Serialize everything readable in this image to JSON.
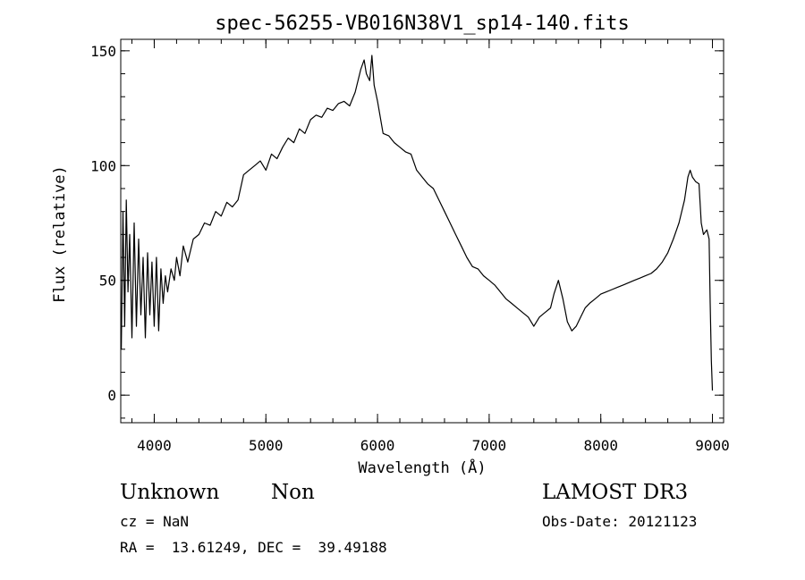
{
  "chart_data": {
    "type": "line",
    "title": "spec-56255-VB016N38V1_sp14-140.fits",
    "xlabel": "Wavelength (Å)",
    "ylabel": "Flux (relative)",
    "xlim": [
      3700,
      9100
    ],
    "ylim": [
      -12,
      155
    ],
    "xticks": [
      4000,
      5000,
      6000,
      7000,
      8000,
      9000
    ],
    "yticks": [
      0,
      50,
      100,
      150
    ],
    "x_minor_step": 200,
    "y_minor_step": 10,
    "grid": false,
    "series": [
      {
        "color": "#000000",
        "points": [
          [
            3705,
            20
          ],
          [
            3720,
            80
          ],
          [
            3735,
            30
          ],
          [
            3750,
            85
          ],
          [
            3765,
            45
          ],
          [
            3780,
            70
          ],
          [
            3800,
            25
          ],
          [
            3820,
            75
          ],
          [
            3840,
            30
          ],
          [
            3860,
            68
          ],
          [
            3880,
            35
          ],
          [
            3900,
            60
          ],
          [
            3920,
            25
          ],
          [
            3940,
            62
          ],
          [
            3960,
            35
          ],
          [
            3980,
            58
          ],
          [
            4000,
            30
          ],
          [
            4020,
            60
          ],
          [
            4040,
            28
          ],
          [
            4060,
            55
          ],
          [
            4080,
            40
          ],
          [
            4100,
            52
          ],
          [
            4120,
            45
          ],
          [
            4150,
            55
          ],
          [
            4180,
            50
          ],
          [
            4200,
            60
          ],
          [
            4230,
            52
          ],
          [
            4260,
            65
          ],
          [
            4300,
            58
          ],
          [
            4350,
            68
          ],
          [
            4400,
            70
          ],
          [
            4450,
            75
          ],
          [
            4500,
            74
          ],
          [
            4550,
            80
          ],
          [
            4600,
            78
          ],
          [
            4650,
            84
          ],
          [
            4700,
            82
          ],
          [
            4750,
            85
          ],
          [
            4800,
            96
          ],
          [
            4850,
            98
          ],
          [
            4900,
            100
          ],
          [
            4950,
            102
          ],
          [
            5000,
            98
          ],
          [
            5050,
            105
          ],
          [
            5100,
            103
          ],
          [
            5150,
            108
          ],
          [
            5200,
            112
          ],
          [
            5250,
            110
          ],
          [
            5300,
            116
          ],
          [
            5350,
            114
          ],
          [
            5400,
            120
          ],
          [
            5450,
            122
          ],
          [
            5500,
            121
          ],
          [
            5550,
            125
          ],
          [
            5600,
            124
          ],
          [
            5650,
            127
          ],
          [
            5700,
            128
          ],
          [
            5750,
            126
          ],
          [
            5800,
            132
          ],
          [
            5850,
            142
          ],
          [
            5880,
            146
          ],
          [
            5900,
            140
          ],
          [
            5930,
            137
          ],
          [
            5950,
            148
          ],
          [
            5970,
            135
          ],
          [
            6000,
            128
          ],
          [
            6050,
            114
          ],
          [
            6100,
            113
          ],
          [
            6150,
            110
          ],
          [
            6200,
            108
          ],
          [
            6250,
            106
          ],
          [
            6300,
            105
          ],
          [
            6350,
            98
          ],
          [
            6400,
            95
          ],
          [
            6450,
            92
          ],
          [
            6500,
            90
          ],
          [
            6550,
            85
          ],
          [
            6600,
            80
          ],
          [
            6650,
            75
          ],
          [
            6700,
            70
          ],
          [
            6750,
            65
          ],
          [
            6800,
            60
          ],
          [
            6850,
            56
          ],
          [
            6900,
            55
          ],
          [
            6950,
            52
          ],
          [
            7000,
            50
          ],
          [
            7050,
            48
          ],
          [
            7100,
            45
          ],
          [
            7150,
            42
          ],
          [
            7200,
            40
          ],
          [
            7250,
            38
          ],
          [
            7300,
            36
          ],
          [
            7350,
            34
          ],
          [
            7400,
            30
          ],
          [
            7450,
            34
          ],
          [
            7500,
            36
          ],
          [
            7550,
            38
          ],
          [
            7580,
            44
          ],
          [
            7620,
            50
          ],
          [
            7660,
            42
          ],
          [
            7700,
            32
          ],
          [
            7740,
            28
          ],
          [
            7780,
            30
          ],
          [
            7820,
            34
          ],
          [
            7860,
            38
          ],
          [
            7900,
            40
          ],
          [
            7950,
            42
          ],
          [
            8000,
            44
          ],
          [
            8050,
            45
          ],
          [
            8100,
            46
          ],
          [
            8150,
            47
          ],
          [
            8200,
            48
          ],
          [
            8250,
            49
          ],
          [
            8300,
            50
          ],
          [
            8350,
            51
          ],
          [
            8400,
            52
          ],
          [
            8450,
            53
          ],
          [
            8500,
            55
          ],
          [
            8550,
            58
          ],
          [
            8600,
            62
          ],
          [
            8650,
            68
          ],
          [
            8700,
            75
          ],
          [
            8750,
            85
          ],
          [
            8780,
            95
          ],
          [
            8800,
            98
          ],
          [
            8820,
            95
          ],
          [
            8850,
            93
          ],
          [
            8880,
            92
          ],
          [
            8900,
            75
          ],
          [
            8920,
            70
          ],
          [
            8950,
            72
          ],
          [
            8970,
            68
          ],
          [
            8980,
            40
          ],
          [
            8990,
            15
          ],
          [
            9000,
            2
          ]
        ]
      }
    ]
  },
  "info": {
    "object_class": "Unknown",
    "object_subclass": "Non",
    "survey": "LAMOST DR3",
    "cz": "cz = NaN",
    "obs_date": "Obs-Date: 20121123",
    "ra_dec": "RA =  13.61249, DEC =  39.49188"
  }
}
